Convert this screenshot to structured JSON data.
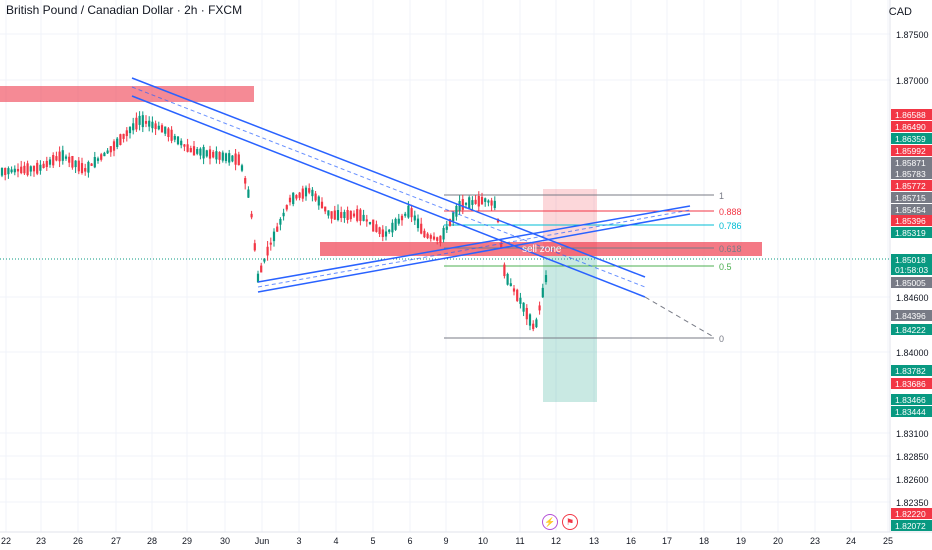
{
  "header": {
    "title": "British Pound / Canadian Dollar · 2h · FXCM",
    "currency": "CAD"
  },
  "price_axis": {
    "ticks": [
      "1.87500",
      "1.87000",
      "1.84600",
      "1.84000",
      "1.83100",
      "1.82850",
      "1.82600",
      "1.82350"
    ]
  },
  "price_labels": [
    {
      "text": "1.86588",
      "color": "#f23645"
    },
    {
      "text": "1.86490",
      "color": "#f23645"
    },
    {
      "text": "1.86359",
      "color": "#089981"
    },
    {
      "text": "1.85992",
      "color": "#f23645"
    },
    {
      "text": "1.85871",
      "color": "#787b86"
    },
    {
      "text": "1.85783",
      "color": "#787b86"
    },
    {
      "text": "1.85772",
      "color": "#f23645"
    },
    {
      "text": "1.85715",
      "color": "#787b86"
    },
    {
      "text": "1.85454",
      "color": "#787b86"
    },
    {
      "text": "1.85396",
      "color": "#f23645"
    },
    {
      "text": "1.85319",
      "color": "#089981"
    },
    {
      "text": "1.85018",
      "color": "#089981"
    },
    {
      "text": "01:58:03",
      "color": "#089981"
    },
    {
      "text": "1.85005",
      "color": "#787b86"
    },
    {
      "text": "1.84396",
      "color": "#787b86"
    },
    {
      "text": "1.84222",
      "color": "#089981"
    },
    {
      "text": "1.83782",
      "color": "#089981"
    },
    {
      "text": "1.83686",
      "color": "#f23645"
    },
    {
      "text": "1.83466",
      "color": "#089981"
    },
    {
      "text": "1.83444",
      "color": "#089981"
    },
    {
      "text": "1.82220",
      "color": "#f23645"
    },
    {
      "text": "1.82072",
      "color": "#089981"
    }
  ],
  "time_axis": {
    "labels": [
      "22",
      "23",
      "26",
      "27",
      "28",
      "29",
      "30",
      "Jun",
      "3",
      "4",
      "5",
      "6",
      "9",
      "10",
      "11",
      "12",
      "13",
      "16",
      "17",
      "18",
      "19",
      "20",
      "23",
      "24",
      "25"
    ]
  },
  "fibonacci": [
    {
      "level": "1",
      "color": "#787b86"
    },
    {
      "level": "0.888",
      "color": "#f23645"
    },
    {
      "level": "0.786",
      "color": "#00bcd4"
    },
    {
      "level": "0.618",
      "color": "#787b86"
    },
    {
      "level": "0.5",
      "color": "#4caf50"
    },
    {
      "level": "0",
      "color": "#787b86"
    }
  ],
  "zone_label": "sell zone",
  "colors": {
    "up": "#089981",
    "down": "#f23645",
    "trend": "#2962ff",
    "zone": "#f04c5c"
  }
}
